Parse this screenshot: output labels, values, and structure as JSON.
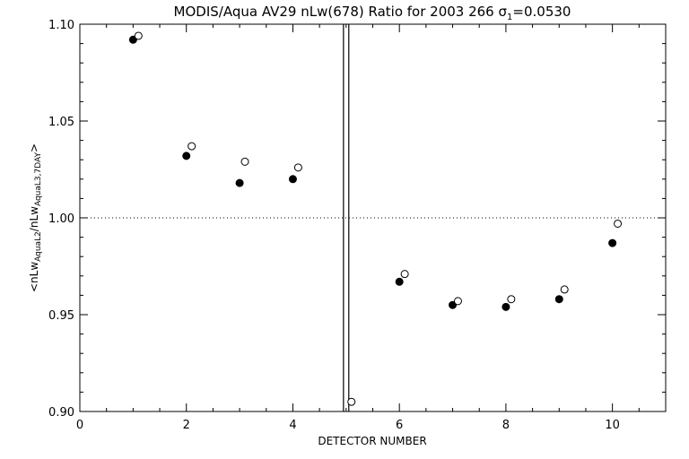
{
  "chart_data": {
    "type": "scatter",
    "title_main": "MODIS/Aqua AV29 nLw(678) Ratio for 2003 266 ",
    "title_sigma": "σ",
    "title_sub": "1",
    "title_value": "=0.0530",
    "xlabel": "DETECTOR NUMBER",
    "ylabel": {
      "prefix": "<nLw",
      "sub1": "AquaL2",
      "middle": "/nLw",
      "sub2": "AquaL3,7DAY",
      "suffix": ">"
    },
    "xlim": [
      0,
      11
    ],
    "ylim": [
      0.9,
      1.1
    ],
    "x_ticks": [
      "0",
      "2",
      "4",
      "6",
      "8",
      "10"
    ],
    "y_ticks": [
      "0.90",
      "0.95",
      "1.00",
      "1.05",
      "1.10"
    ],
    "reference_line_y": 1.0,
    "highlight_band_x": [
      4.95,
      5.05
    ],
    "series": [
      {
        "marker": "filled-circle",
        "x": [
          1,
          2,
          3,
          4,
          6,
          7,
          8,
          9,
          10
        ],
        "y": [
          1.092,
          1.032,
          1.018,
          1.02,
          0.967,
          0.955,
          0.954,
          0.958,
          0.987
        ]
      },
      {
        "marker": "open-circle",
        "x": [
          1.1,
          2.1,
          3.1,
          4.1,
          5.1,
          6.1,
          7.1,
          8.1,
          9.1,
          10.1
        ],
        "y": [
          1.094,
          1.037,
          1.029,
          1.026,
          0.905,
          0.971,
          0.957,
          0.958,
          0.963,
          0.997
        ]
      }
    ]
  }
}
